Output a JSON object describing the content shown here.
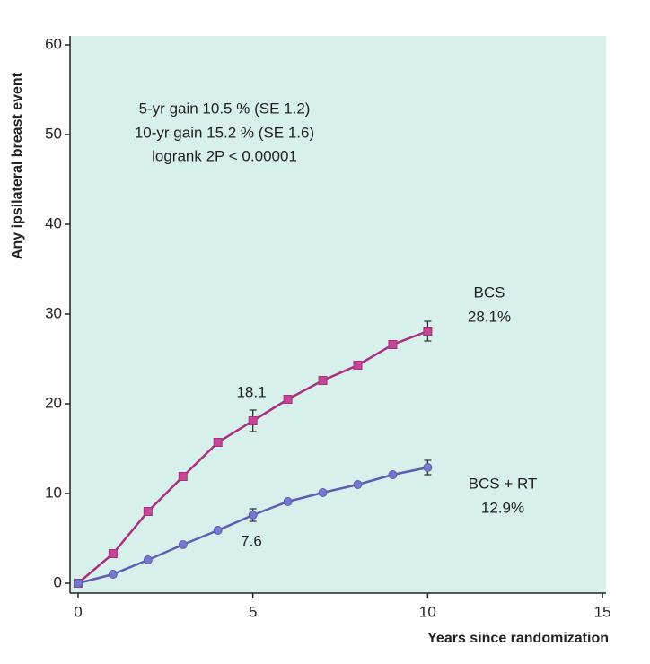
{
  "chart_data": {
    "type": "line",
    "x_label": "Years since randomization",
    "y_label": "Any ipsilateral breast event",
    "x": [
      0,
      1,
      2,
      3,
      4,
      5,
      6,
      7,
      8,
      9,
      10
    ],
    "series": [
      {
        "name": "BCS",
        "color": "#a8307e",
        "marker_color": "#c44896",
        "marker": "square",
        "values": [
          0,
          3.3,
          8,
          11.9,
          15.7,
          18.1,
          20.5,
          22.6,
          24.3,
          26.6,
          28.1
        ],
        "errors": [
          null,
          null,
          null,
          null,
          null,
          1.2,
          null,
          null,
          null,
          null,
          1.1
        ]
      },
      {
        "name": "BCS + RT",
        "color": "#5b5fb0",
        "marker_color": "#7478cc",
        "marker": "circle",
        "values": [
          0,
          1,
          2.6,
          4.3,
          5.9,
          7.6,
          9.1,
          10.1,
          11,
          12.1,
          12.9
        ],
        "errors": [
          null,
          null,
          null,
          null,
          null,
          0.7,
          null,
          null,
          null,
          null,
          0.8
        ]
      }
    ],
    "annotations": [
      "5-yr gain 10.5 % (SE 1.2)",
      "10-yr gain 15.2 % (SE 1.6)",
      "logrank 2P < 0.00001",
      "28.1%",
      "18.1",
      "12.9%",
      "7.6"
    ],
    "xlim": [
      -0.23,
      15.1
    ],
    "ylim": [
      -1.1,
      61
    ],
    "xticks": [
      0,
      5,
      10,
      15
    ],
    "yticks": [
      0,
      10,
      20,
      30,
      40,
      50,
      60
    ],
    "background": "#d8f0ec"
  }
}
